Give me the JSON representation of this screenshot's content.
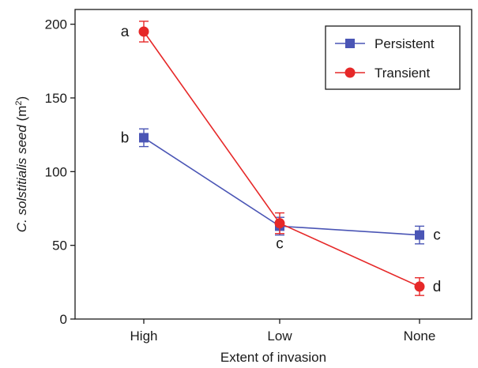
{
  "chart_data": {
    "type": "line",
    "title": "",
    "xlabel": "Extent of invasion",
    "ylabel": {
      "italic": "C. solstitialis seed",
      "plain": " (m",
      "sup": "2",
      "close": ")"
    },
    "categories": [
      "High",
      "Low",
      "None"
    ],
    "ylim": [
      0,
      210
    ],
    "yticks": [
      0,
      50,
      100,
      150,
      200
    ],
    "grid": false,
    "legend_position": "top-right",
    "series": [
      {
        "name": "Persistent",
        "color": "#4a55b5",
        "marker": "square",
        "values": [
          123,
          63,
          57
        ],
        "errors": [
          6,
          6,
          6
        ],
        "letters": [
          "b",
          "c",
          "c"
        ]
      },
      {
        "name": "Transient",
        "color": "#e62828",
        "marker": "circle",
        "values": [
          195,
          65,
          22
        ],
        "errors": [
          7,
          7,
          6
        ],
        "letters": [
          "a",
          "",
          "d"
        ]
      }
    ]
  }
}
